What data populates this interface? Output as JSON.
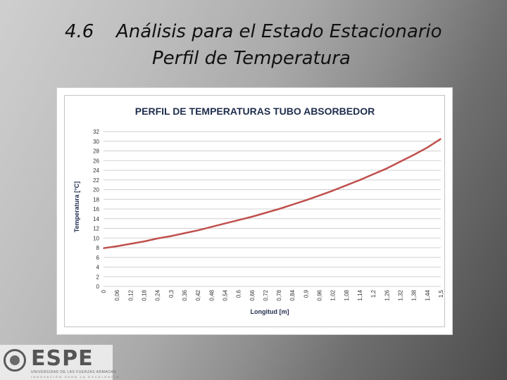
{
  "slide": {
    "number": "4.6",
    "title_line1": "Análisis para el Estado Estacionario",
    "title_line2": "Perfil de Temperatura"
  },
  "logo": {
    "name": "ESPE",
    "subtitle": "UNIVERSIDAD DE LAS FUERZAS ARMADAS",
    "tagline": "INNOVACIÓN PARA LA EXCELENCIA"
  },
  "chart_data": {
    "type": "line",
    "title": "PERFIL DE TEMPERATURAS TUBO ABSORBEDOR",
    "xlabel": "Longitud [m]",
    "ylabel": "Temperatura [°C]",
    "ylim": [
      0,
      32
    ],
    "yticks": [
      0,
      2,
      4,
      6,
      8,
      10,
      12,
      14,
      16,
      18,
      20,
      22,
      24,
      26,
      28,
      30,
      32
    ],
    "xticks": [
      "0",
      "0,06",
      "0,12",
      "0,18",
      "0,24",
      "0,3",
      "0,36",
      "0,42",
      "0,48",
      "0,54",
      "0,6",
      "0,66",
      "0,72",
      "0,78",
      "0,84",
      "0,9",
      "0,96",
      "1,02",
      "1,08",
      "1,14",
      "1,2",
      "1,26",
      "1,32",
      "1,38",
      "1,44",
      "1,5"
    ],
    "grid": true,
    "series_color": "#c0504d",
    "series": [
      {
        "x": [
          0,
          0.06,
          0.12,
          0.18,
          0.24,
          0.3,
          0.36,
          0.42,
          0.48,
          0.54,
          0.6,
          0.66,
          0.72,
          0.78,
          0.84,
          0.9,
          0.96,
          1.02,
          1.08,
          1.14,
          1.2,
          1.26,
          1.32,
          1.38,
          1.44,
          1.5
        ],
        "values": [
          7.9,
          8.3,
          8.8,
          9.3,
          9.9,
          10.4,
          11.0,
          11.6,
          12.3,
          13.0,
          13.7,
          14.4,
          15.2,
          16.0,
          16.9,
          17.8,
          18.8,
          19.8,
          20.9,
          22.0,
          23.2,
          24.4,
          25.8,
          27.2,
          28.7,
          30.5
        ]
      }
    ]
  }
}
